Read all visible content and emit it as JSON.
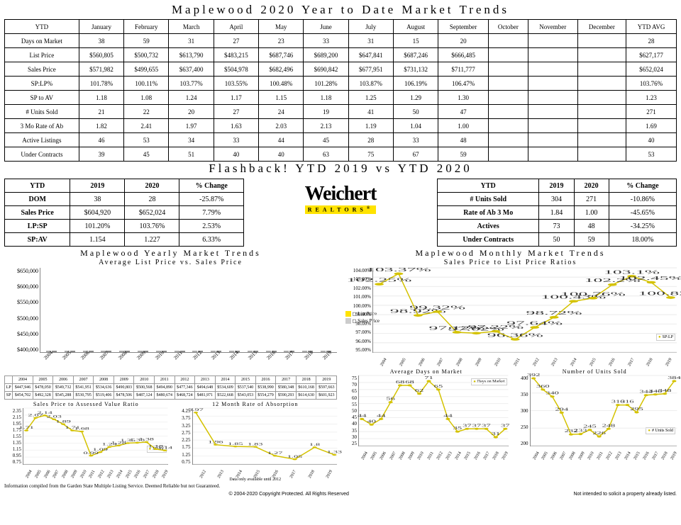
{
  "title": "Maplewood 2020 Year to Date Market Trends",
  "main_table": {
    "columns": [
      "YTD",
      "January",
      "February",
      "March",
      "April",
      "May",
      "June",
      "July",
      "August",
      "September",
      "October",
      "November",
      "December",
      "YTD AVG"
    ],
    "rows": [
      [
        "Days on Market",
        "38",
        "59",
        "31",
        "27",
        "23",
        "33",
        "31",
        "15",
        "20",
        "",
        "",
        "",
        "28"
      ],
      [
        "List Price",
        "$560,805",
        "$500,732",
        "$613,790",
        "$483,215",
        "$687,746",
        "$689,200",
        "$647,841",
        "$687,246",
        "$666,485",
        "",
        "",
        "",
        "$627,177"
      ],
      [
        "Sales Price",
        "$571,982",
        "$499,655",
        "$637,400",
        "$504,978",
        "$682,496",
        "$690,842",
        "$677,951",
        "$731,132",
        "$711,777",
        "",
        "",
        "",
        "$652,024"
      ],
      [
        "SP:LP%",
        "101.78%",
        "100.11%",
        "103.77%",
        "103.55%",
        "100.48%",
        "101.28%",
        "103.87%",
        "106.19%",
        "106.47%",
        "",
        "",
        "",
        "103.76%"
      ],
      [
        "SP to AV",
        "1.18",
        "1.08",
        "1.24",
        "1.17",
        "1.15",
        "1.18",
        "1.25",
        "1.29",
        "1.30",
        "",
        "",
        "",
        "1.23"
      ],
      [
        "# Units Sold",
        "21",
        "22",
        "20",
        "27",
        "24",
        "19",
        "41",
        "50",
        "47",
        "",
        "",
        "",
        "271"
      ],
      [
        "3 Mo Rate of Ab",
        "1.82",
        "2.41",
        "1.97",
        "1.63",
        "2.03",
        "2.13",
        "1.19",
        "1.04",
        "1.00",
        "",
        "",
        "",
        "1.69"
      ],
      [
        "Active Listings",
        "46",
        "53",
        "34",
        "33",
        "44",
        "45",
        "28",
        "33",
        "48",
        "",
        "",
        "",
        "40"
      ],
      [
        "Under Contracts",
        "39",
        "45",
        "51",
        "40",
        "40",
        "63",
        "75",
        "67",
        "59",
        "",
        "",
        "",
        "53"
      ]
    ]
  },
  "flashback_title": "Flashback!  YTD 2019 vs YTD 2020",
  "flashback_left": {
    "columns": [
      "YTD",
      "2019",
      "2020",
      "% Change"
    ],
    "rows": [
      [
        "DOM",
        "38",
        "28",
        "-25.87%"
      ],
      [
        "Sales Price",
        "$604,920",
        "$652,024",
        "7.79%"
      ],
      [
        "LP:SP",
        "101.20%",
        "103.76%",
        "2.53%"
      ],
      [
        "SP:AV",
        "1.154",
        "1.227",
        "6.33%"
      ]
    ]
  },
  "flashback_right": {
    "columns": [
      "YTD",
      "2019",
      "2020",
      "% Change"
    ],
    "rows": [
      [
        "# Units Sold",
        "304",
        "271",
        "-10.86%"
      ],
      [
        "Rate of Ab 3 Mo",
        "1.84",
        "1.00",
        "-45.65%"
      ],
      [
        "Actives",
        "73",
        "48",
        "-34.25%"
      ],
      [
        "Under Contracts",
        "50",
        "59",
        "18.00%"
      ]
    ]
  },
  "logo_text": "Weichert",
  "logo_sub": "REALTORS",
  "yearly_title": "Maplewood Yearly Market Trends",
  "yearly_sub": "Average List Price vs. Sales Price",
  "monthly_title": "Maplewood Monthly Market Trends",
  "monthly_sub": "Sales Price to List Price Ratios",
  "barchart": {
    "years": [
      "2004",
      "2005",
      "2006",
      "2007",
      "2008",
      "2009",
      "2010",
      "2011",
      "2012",
      "2013",
      "2014",
      "2015",
      "2016",
      "2017",
      "2018",
      "2019"
    ],
    "ylim": [
      400000,
      650000
    ],
    "yticks": [
      "$650,000",
      "$600,000",
      "$550,000",
      "$500,000",
      "$450,000",
      "$400,000"
    ],
    "lp": [
      447946,
      478050,
      549732,
      541951,
      534636,
      490803,
      500568,
      494890,
      477346,
      494648,
      534609,
      537540,
      538990,
      580348,
      610168,
      597663
    ],
    "sp": [
      454702,
      492328,
      545288,
      530795,
      519406,
      478506,
      487124,
      480674,
      468724,
      481971,
      522668,
      543053,
      554279,
      590293,
      614630,
      601923
    ],
    "legend": [
      "List Price",
      "Sales Price"
    ]
  },
  "data_strip": {
    "years": [
      "2004",
      "2005",
      "2006",
      "2007",
      "2008",
      "2009",
      "2010",
      "2011",
      "2012",
      "2013",
      "2014",
      "2015",
      "2016",
      "2017",
      "2018",
      "2019"
    ],
    "lp": [
      "$447,946",
      "$478,050",
      "$549,732",
      "$541,951",
      "$534,636",
      "$490,803",
      "$500,568",
      "$494,890",
      "$477,346",
      "$494,648",
      "$534,609",
      "$537,540",
      "$538,990",
      "$580,348",
      "$610,168",
      "$597,663"
    ],
    "sp": [
      "$454,702",
      "$492,328",
      "$545,288",
      "$530,795",
      "$519,406",
      "$478,506",
      "$487,124",
      "$480,674",
      "$468,724",
      "$481,971",
      "$522,668",
      "$543,053",
      "$554,279",
      "$590,293",
      "$614,630",
      "$601,923"
    ]
  },
  "spav_chart": {
    "title": "Sales Price to Assessed Value Ratio",
    "years": [
      "2004",
      "2005",
      "2006",
      "2007",
      "2008",
      "2009",
      "2010",
      "2011",
      "2012",
      "2013",
      "2014",
      "2015",
      "2016",
      "2017",
      "2018",
      "2019"
    ],
    "values": [
      1.71,
      2.07,
      2.14,
      2.03,
      1.89,
      1.71,
      1.68,
      0.99,
      1.09,
      1.24,
      1.28,
      1.35,
      1.36,
      1.38,
      1.18,
      1.14
    ],
    "yticks": [
      "2.35",
      "2.15",
      "1.95",
      "1.75",
      "1.55",
      "1.35",
      "1.15",
      "0.95",
      "0.75"
    ],
    "ylim": [
      0.75,
      2.35
    ],
    "legend": "SP:AV"
  },
  "absorb_chart": {
    "title": "12 Month Rate of Absorption",
    "years": [
      "2012",
      "2013",
      "2014",
      "2015",
      "2016",
      "2017",
      "2018",
      "2019"
    ],
    "values": [
      3.97,
      1.96,
      1.85,
      1.83,
      1.27,
      1.05,
      1.8,
      1.33
    ],
    "yticks": [
      "4.25",
      "3.75",
      "3.25",
      "2.75",
      "2.25",
      "1.75",
      "1.25",
      "0.75"
    ],
    "ylim": [
      0.75,
      4.25
    ],
    "note": "Data only available until 2012"
  },
  "splp_chart": {
    "years": [
      "2004",
      "2005",
      "2006",
      "2007",
      "2008",
      "2009",
      "2010",
      "2011",
      "2012",
      "2013",
      "2014",
      "2015",
      "2016",
      "2017",
      "2018",
      "2019"
    ],
    "values": [
      102.25,
      103.37,
      98.92,
      99.32,
      97.12,
      97.02,
      97.22,
      96.36,
      97.64,
      98.72,
      100.43,
      100.76,
      102.2,
      103.1,
      102.45,
      100.82
    ],
    "yticks": [
      "104.00%",
      "103.00%",
      "102.00%",
      "101.00%",
      "100.00%",
      "99.00%",
      "98.00%",
      "97.00%",
      "96.00%",
      "95.00%"
    ],
    "ylim": [
      95,
      104
    ],
    "legend": "SP:LP"
  },
  "dom_chart": {
    "title": "Average Days on Market",
    "years": [
      "2004",
      "2005",
      "2006",
      "2007",
      "2008",
      "2009",
      "2010",
      "2011",
      "2012",
      "2013",
      "2014",
      "2015",
      "2016",
      "2017",
      "2018",
      "2019"
    ],
    "values": [
      44,
      40,
      44,
      56,
      68,
      68,
      62,
      71,
      65,
      44,
      35,
      37,
      37,
      37,
      31,
      37
    ],
    "yticks": [
      "75",
      "70",
      "65",
      "60",
      "55",
      "50",
      "45",
      "40",
      "35",
      "30",
      "25"
    ],
    "ylim": [
      25,
      75
    ],
    "legend": "Days on Market"
  },
  "units_chart": {
    "title": "Number of Units Sold",
    "years": [
      "2004",
      "2005",
      "2006",
      "2007",
      "2008",
      "2009",
      "2010",
      "2011",
      "2012",
      "2013",
      "2014",
      "2015",
      "2016",
      "2017",
      "2018",
      "2019"
    ],
    "values": [
      392,
      360,
      340,
      294,
      232,
      233,
      245,
      226,
      248,
      316,
      316,
      295,
      344,
      346,
      348,
      384
    ],
    "yticks": [
      "400",
      "350",
      "300",
      "250",
      "200"
    ],
    "ylim": [
      200,
      400
    ],
    "legend": "# Units Sold"
  },
  "footer": {
    "left": "Information compiled from the Garden State Multiple Listing Service.  Deemed Reliable but not Guaranteed.",
    "center": "© 2004-2020 Copyright Protected.  All Rights Reserved",
    "right": "Not intended to solicit a property already listed."
  },
  "colors": {
    "gold": "#d4c200",
    "yellow": "#ffe300",
    "grey": "#cccccc"
  }
}
